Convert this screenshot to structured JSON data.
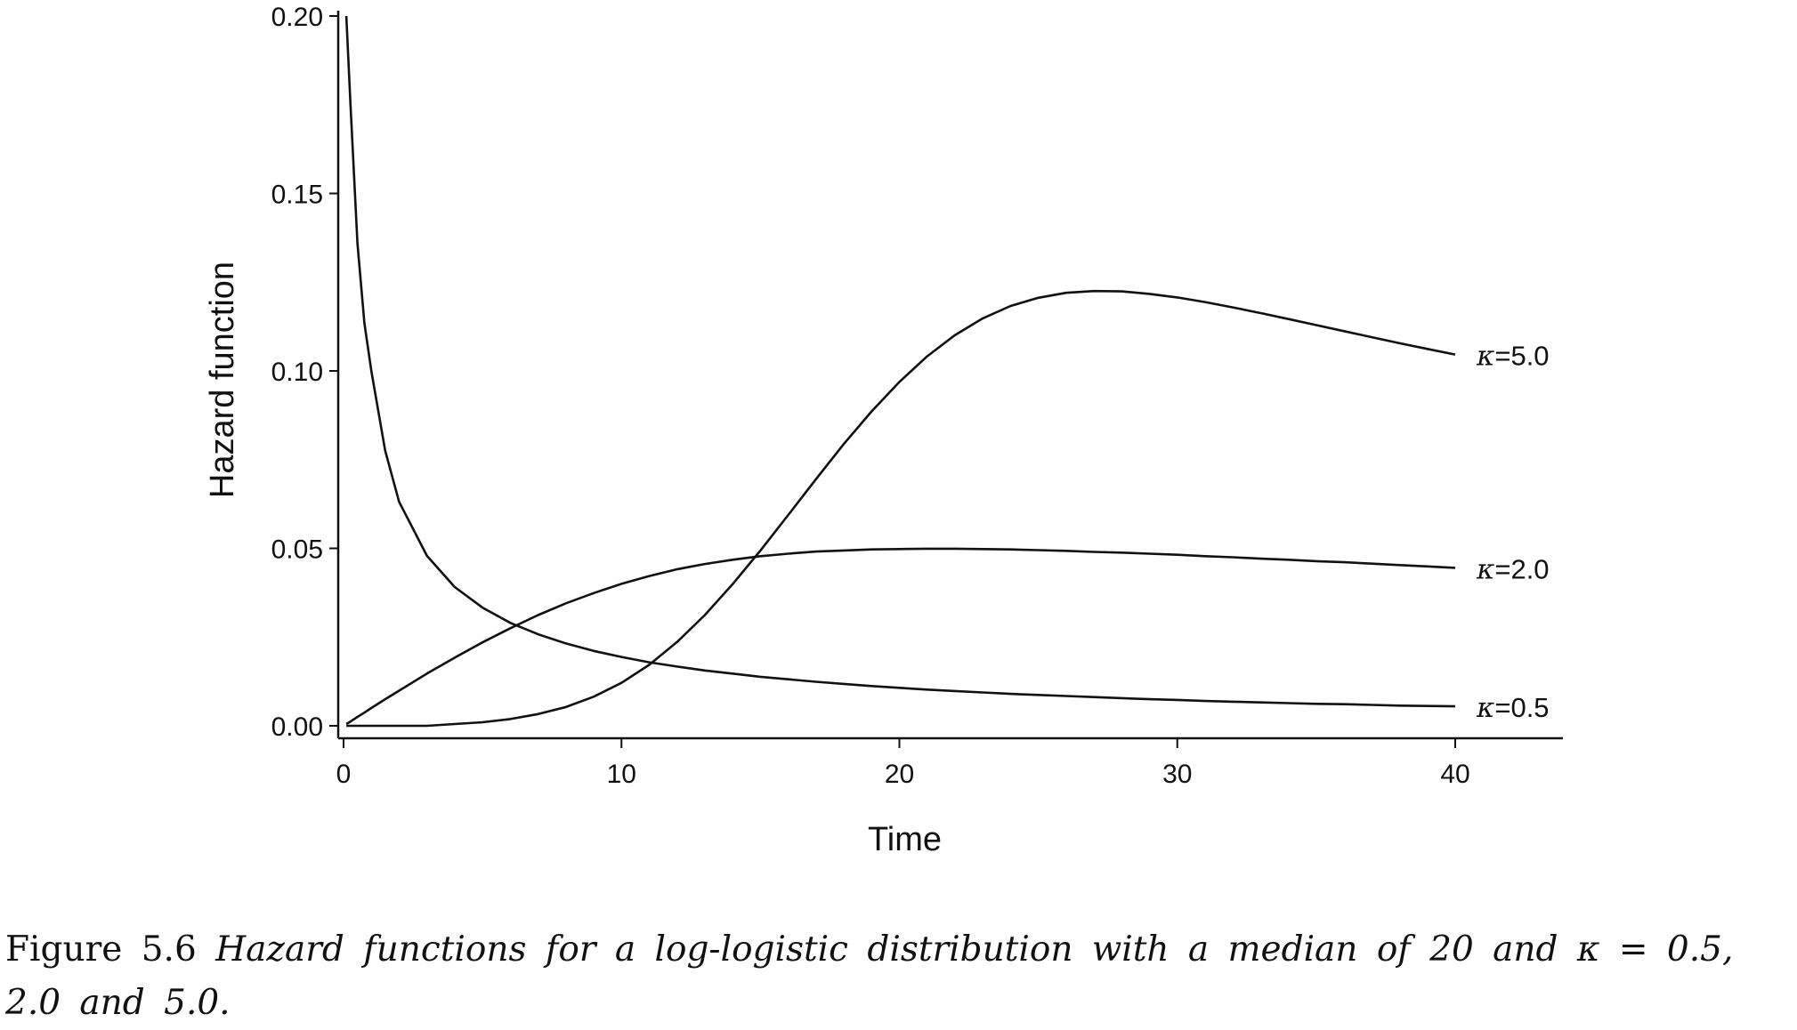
{
  "chart_data": {
    "type": "line",
    "xlabel": "Time",
    "ylabel": "Hazard function",
    "xlim": [
      0,
      44
    ],
    "ylim": [
      0,
      0.2
    ],
    "xticks": [
      0,
      10,
      20,
      30,
      40
    ],
    "xtick_labels": [
      "0",
      "10",
      "20",
      "30",
      "40"
    ],
    "yticks": [
      0,
      0.05,
      0.1,
      0.15,
      0.2
    ],
    "ytick_labels": [
      "0.00",
      "0.05",
      "0.10",
      "0.15",
      "0.20"
    ],
    "grid": false,
    "legend": "inline labels at right end of each curve",
    "x": [
      0.1,
      0.25,
      0.5,
      0.75,
      1,
      1.5,
      2,
      3,
      4,
      5,
      6,
      7,
      8,
      9,
      10,
      11,
      12,
      13,
      14,
      15,
      16,
      17,
      18,
      19,
      20,
      21,
      22,
      23,
      24,
      25,
      26,
      27,
      28,
      29,
      30,
      31,
      32,
      33,
      34,
      35,
      36,
      37,
      38,
      39,
      40
    ],
    "series": [
      {
        "name": "κ=0.5",
        "label_kappa": "κ",
        "label_value": "=0.5",
        "values": [
          0.2,
          0.175,
          0.136,
          0.1135,
          0.1,
          0.0775,
          0.0631,
          0.0479,
          0.0391,
          0.0333,
          0.029,
          0.0258,
          0.0232,
          0.0211,
          0.0194,
          0.0179,
          0.0167,
          0.0156,
          0.0147,
          0.0138,
          0.0131,
          0.0124,
          0.0118,
          0.0112,
          0.0107,
          0.0102,
          0.0098,
          0.0094,
          0.009,
          0.0087,
          0.0084,
          0.0081,
          0.0078,
          0.0075,
          0.0073,
          0.007,
          0.0068,
          0.0066,
          0.0064,
          0.0062,
          0.0061,
          0.0059,
          0.0057,
          0.0056,
          0.0055
        ]
      },
      {
        "name": "κ=2.0",
        "label_kappa": "κ",
        "label_value": "=2.0",
        "values": [
          0.0005,
          0.0012,
          0.0025,
          0.0037,
          0.005,
          0.0075,
          0.0099,
          0.0147,
          0.0192,
          0.0235,
          0.0275,
          0.0312,
          0.0345,
          0.0374,
          0.04,
          0.0422,
          0.0441,
          0.0456,
          0.0468,
          0.0478,
          0.0485,
          0.0491,
          0.0494,
          0.0497,
          0.0498,
          0.0499,
          0.0499,
          0.0498,
          0.0497,
          0.0495,
          0.0493,
          0.049,
          0.0488,
          0.0485,
          0.0482,
          0.0478,
          0.0475,
          0.0471,
          0.0468,
          0.0464,
          0.0461,
          0.0457,
          0.0453,
          0.0449,
          0.0445
        ]
      },
      {
        "name": "κ=5.0",
        "label_kappa": "κ",
        "label_value": "=5.0",
        "values": [
          0.0,
          0.0,
          0.0,
          0.0,
          0.0,
          0.0,
          0.0,
          0.0,
          0.0005,
          0.001,
          0.0019,
          0.0033,
          0.0053,
          0.0082,
          0.0121,
          0.0172,
          0.0236,
          0.0312,
          0.0399,
          0.0494,
          0.0594,
          0.0695,
          0.0794,
          0.0886,
          0.0969,
          0.1041,
          0.1101,
          0.1148,
          0.1183,
          0.1206,
          0.122,
          0.1225,
          0.1224,
          0.1217,
          0.1207,
          0.1194,
          0.1179,
          0.1163,
          0.1146,
          0.1129,
          0.1112,
          0.1095,
          0.1078,
          0.1062,
          0.1046
        ]
      }
    ]
  },
  "caption": {
    "figure_number": "Figure 5.6",
    "text": "Hazard functions for a log-logistic distribution with a median of 20 and κ = 0.5, 2.0 and 5.0."
  }
}
